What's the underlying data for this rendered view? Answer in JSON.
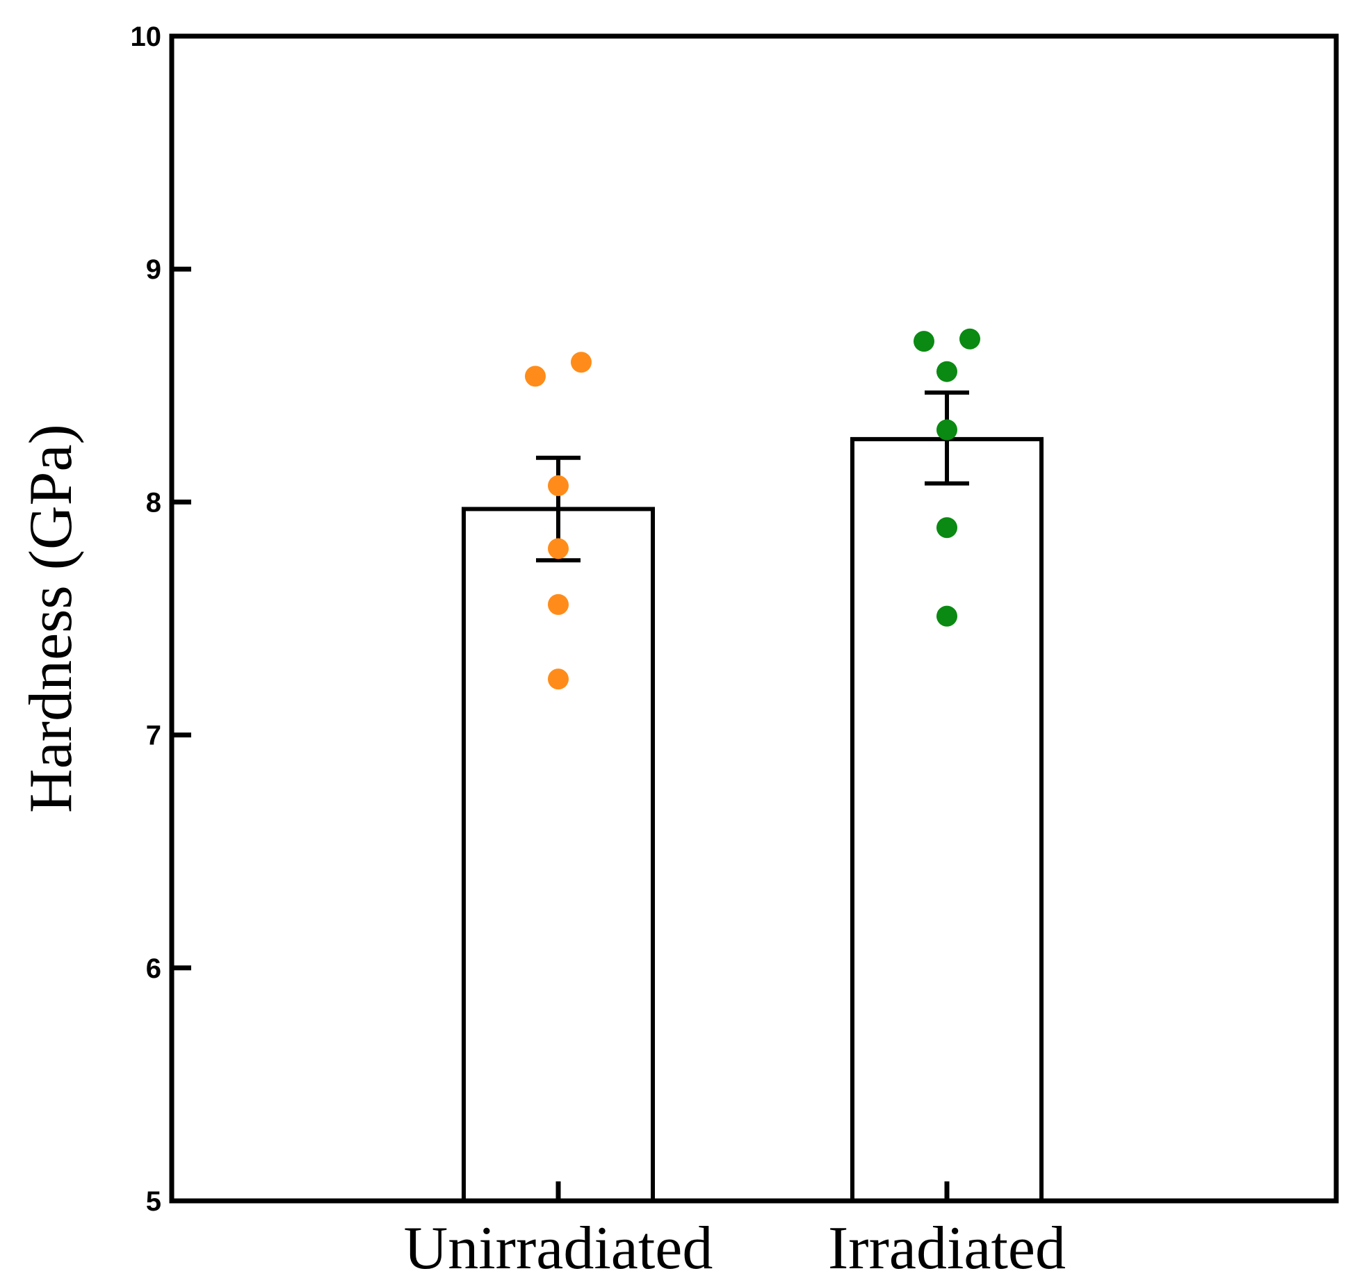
{
  "chart_data": {
    "type": "bar",
    "title": "",
    "xlabel": "",
    "ylabel": "Hardness (GPa)",
    "ylim": [
      5,
      10
    ],
    "yticks": [
      5,
      6,
      7,
      8,
      9,
      10
    ],
    "grid": false,
    "categories": [
      "Unirradiated",
      "Irradiated"
    ],
    "values": [
      7.97,
      8.27
    ],
    "error_bars": [
      {
        "low": 7.75,
        "high": 8.19
      },
      {
        "low": 8.08,
        "high": 8.47
      }
    ],
    "points": [
      {
        "category": "Unirradiated",
        "color": "#FF8C1A",
        "values": [
          8.54,
          8.6,
          8.07,
          7.8,
          7.56,
          7.24
        ],
        "offsets": [
          -1,
          1,
          0,
          0,
          0,
          0
        ]
      },
      {
        "category": "Irradiated",
        "color": "#0A8A12",
        "values": [
          8.69,
          8.7,
          8.56,
          8.31,
          7.89,
          7.51
        ],
        "offsets": [
          -1,
          1,
          0,
          0,
          0,
          0
        ]
      }
    ]
  }
}
